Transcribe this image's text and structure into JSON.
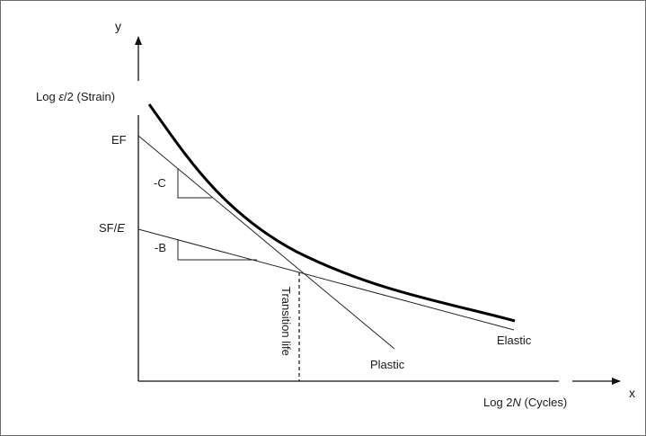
{
  "diagram": {
    "y_axis_letter": "y",
    "x_axis_letter": "x",
    "y_axis_label_prefix": "Log ",
    "y_axis_label_symbol": "ε",
    "y_axis_label_suffix": "/2 (Strain)",
    "x_axis_label_prefix": "Log 2",
    "x_axis_label_symbol": "N",
    "x_axis_label_suffix": " (Cycles)",
    "ef_label": "EF",
    "sf_label_prefix": "SF/",
    "sf_label_symbol": "E",
    "plastic_slope_label": "-C",
    "elastic_slope_label": "-B",
    "transition_label": "Transition life",
    "plastic_line_label": "Plastic",
    "elastic_line_label": "Elastic"
  }
}
